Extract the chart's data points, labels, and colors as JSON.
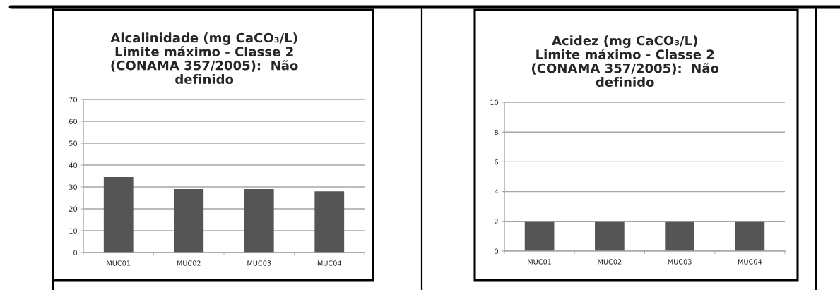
{
  "chart_data": [
    {
      "type": "bar",
      "title": "Alcalinidade (mg CaCO₃/L)\nLimite máximo - Classe 2\n(CONAMA 357/2005):  Não\ndefinido",
      "categories": [
        "MUC01",
        "MUC02",
        "MUC03",
        "MUC04"
      ],
      "values": [
        34.5,
        29,
        29,
        28
      ],
      "color": "#555555",
      "ylim": [
        0,
        70
      ],
      "yticks": [
        0,
        10,
        20,
        30,
        40,
        50,
        60,
        70
      ],
      "grid": "y"
    },
    {
      "type": "bar",
      "title": "Acidez (mg CaCO₃/L)\nLimite máximo - Classe 2\n(CONAMA 357/2005):  Não\ndefinido",
      "categories": [
        "MUC01",
        "MUC02",
        "MUC03",
        "MUC04"
      ],
      "values": [
        2,
        2,
        2,
        2
      ],
      "color": "#555555",
      "ylim": [
        0,
        10
      ],
      "yticks": [
        0,
        2,
        4,
        6,
        8,
        10
      ],
      "grid": "y"
    }
  ]
}
